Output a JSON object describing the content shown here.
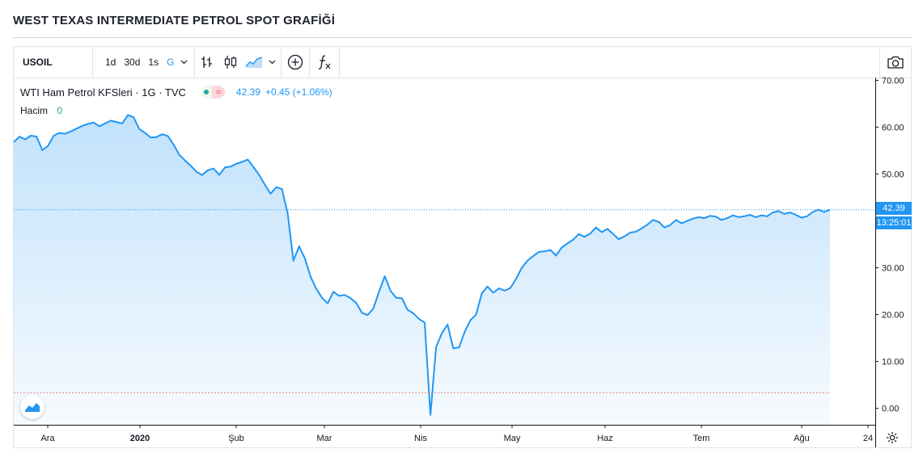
{
  "page": {
    "title": "WEST TEXAS INTERMEDIATE PETROL SPOT GRAFİĞİ"
  },
  "toolbar": {
    "symbol": "USOIL",
    "intervals": [
      "1d",
      "30d",
      "1s",
      "G"
    ],
    "active_interval": "G",
    "icons": [
      "bar-chart-icon",
      "candlestick-icon",
      "area-chart-icon",
      "indicator-add-icon",
      "function-icon",
      "camera-icon"
    ]
  },
  "legend": {
    "name": "WTI Ham Petrol KFSleri · 1G · TVC",
    "value": "42.39",
    "change": "+0.45 (+1.06%)",
    "volume_label": "Hacim",
    "volume_value": "0"
  },
  "price_tags": {
    "last": "42.39",
    "countdown": "13:25:01"
  },
  "colors": {
    "line": "#2196f3",
    "accent": "#2196f3",
    "up": "#26a69a",
    "down": "#ef5350"
  },
  "chart_data": {
    "type": "area",
    "x_ticks": [
      "Ara",
      "2020",
      "Şub",
      "Mar",
      "Nis",
      "May",
      "Haz",
      "Tem",
      "Ağu",
      "24"
    ],
    "y_ticks": [
      "70.00",
      "60.00",
      "50.00",
      "40.00",
      "30.00",
      "20.00",
      "10.00",
      "0.00"
    ],
    "ylim": [
      -3.5,
      70.6
    ],
    "last_price_line": 42.39,
    "low_line": 3.32,
    "values": [
      56.8,
      58.0,
      57.4,
      58.2,
      58.0,
      55.1,
      56.0,
      58.2,
      58.8,
      58.6,
      59.1,
      59.7,
      60.3,
      60.7,
      61.0,
      60.2,
      60.8,
      61.4,
      61.1,
      60.8,
      62.6,
      62.1,
      59.6,
      58.8,
      57.8,
      57.9,
      58.5,
      58.1,
      56.3,
      54.1,
      52.9,
      51.8,
      50.5,
      49.8,
      50.8,
      51.2,
      49.8,
      51.4,
      51.6,
      52.2,
      52.6,
      53.1,
      51.5,
      49.8,
      47.7,
      45.8,
      47.2,
      46.8,
      41.5,
      31.5,
      34.6,
      32.0,
      28.1,
      25.5,
      23.6,
      22.4,
      24.9,
      24.0,
      24.2,
      23.5,
      22.5,
      20.4,
      19.9,
      21.3,
      24.9,
      28.2,
      25.1,
      23.6,
      23.5,
      21.0,
      20.3,
      19.1,
      18.3,
      -1.4,
      13.1,
      16.0,
      17.9,
      12.8,
      13.0,
      16.3,
      18.8,
      20.0,
      24.5,
      26.0,
      24.7,
      25.6,
      25.1,
      25.7,
      27.6,
      30.0,
      31.5,
      32.5,
      33.4,
      33.5,
      33.8,
      32.6,
      34.3,
      35.2,
      36.0,
      37.2,
      36.6,
      37.3,
      38.6,
      37.6,
      38.3,
      37.2,
      36.1,
      36.7,
      37.5,
      37.7,
      38.4,
      39.2,
      40.2,
      39.8,
      38.6,
      39.1,
      40.2,
      39.5,
      40.0,
      40.5,
      40.8,
      40.6,
      41.1,
      40.9,
      40.2,
      40.6,
      41.2,
      40.8,
      41.0,
      41.3,
      40.8,
      41.2,
      41.0,
      41.8,
      42.1,
      41.5,
      41.8,
      41.3,
      40.7,
      41.0,
      41.9,
      42.4,
      41.9,
      42.39
    ]
  }
}
